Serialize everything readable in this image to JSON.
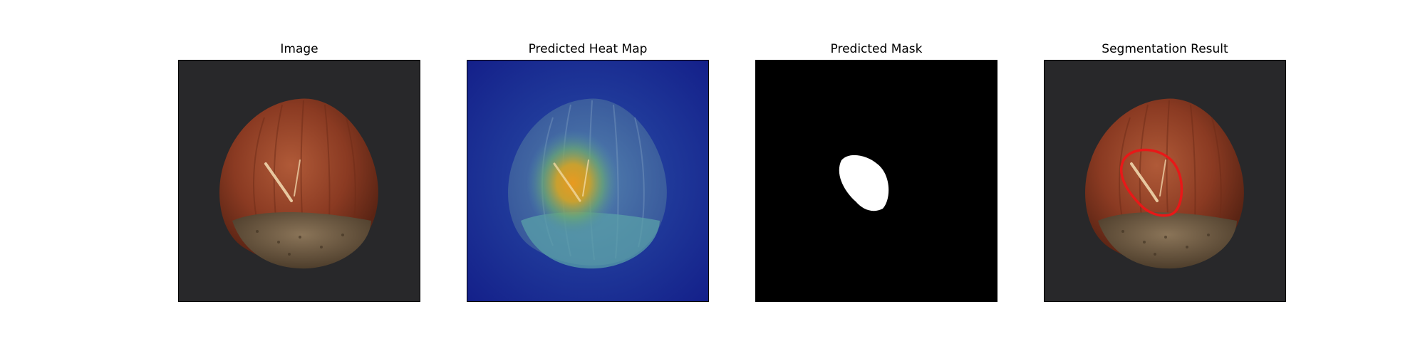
{
  "panels": [
    {
      "title": "Image"
    },
    {
      "title": "Predicted Heat Map"
    },
    {
      "title": "Predicted Mask"
    },
    {
      "title": "Segmentation Result"
    }
  ],
  "colors": {
    "background_dark": "#2a2a2c",
    "shell_red": "#8a3a22",
    "shell_base": "#6e5a44",
    "heat_low": "#1a2a8a",
    "heat_high": "#e89a20",
    "mask_fg": "#ffffff",
    "mask_bg": "#000000",
    "contour": "#e81818"
  },
  "icons": [
    "hazelnut-image",
    "heat-map-image",
    "mask-image",
    "segmentation-overlay-image"
  ]
}
